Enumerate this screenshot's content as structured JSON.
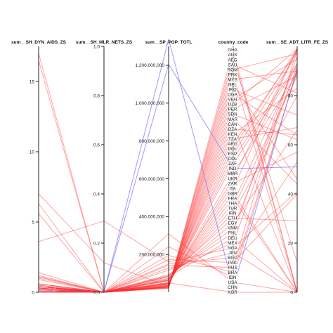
{
  "chart_data": {
    "type": "parallel-coordinates",
    "axes": [
      {
        "id": "aids",
        "title": "sum__SH_DYN_AIDS_ZS",
        "range": [
          0,
          17.5
        ],
        "ticks": [
          0,
          5,
          10,
          15
        ],
        "tick_labels": [
          "0",
          "5",
          "10",
          "15"
        ]
      },
      {
        "id": "nets",
        "title": "sum__SH_MLR_NETS_ZS",
        "range": [
          0,
          1.0
        ],
        "ticks": [
          0.0,
          0.2,
          0.4,
          0.6,
          0.8,
          1.0
        ],
        "tick_labels": [
          "0.0",
          "0.2",
          "0.4",
          "0.6",
          "0.8",
          "1.0"
        ]
      },
      {
        "id": "pop",
        "title": "sum__SP_POP_TOTL",
        "range": [
          0,
          1300000000
        ],
        "ticks": [
          200000000,
          400000000,
          600000000,
          800000000,
          1000000000,
          1200000000
        ],
        "tick_labels": [
          "200,000,000",
          "400,000,000",
          "600,000,000",
          "800,000,000",
          "1,000,000,000",
          "1,200,000,000"
        ]
      },
      {
        "id": "country",
        "title": "country_code",
        "categories": [
          "GHA",
          "AUS",
          "AFG",
          "SAU",
          "ROM",
          "PRK",
          "MYS",
          "NPL",
          "IRQ",
          "UGA",
          "VEN",
          "UZB",
          "PER",
          "SDN",
          "MAR",
          "CAN",
          "DZA",
          "KEN",
          "TZA",
          "ARG",
          "POL",
          "ESP",
          "COL",
          "ZAF",
          "IND",
          "MMR",
          "UKR",
          "ZAR",
          "ITA",
          "GBR",
          "FRA",
          "THA",
          "TUR",
          "IRN",
          "ETH",
          "EGY",
          "VNM",
          "PHL",
          "DEU",
          "MEX",
          "NGA",
          "JPN",
          "BGD",
          "PAK",
          "RUS",
          "BRA",
          "IDN",
          "USA",
          "CHN",
          "KOR"
        ]
      },
      {
        "id": "litr",
        "title": "sum__SE_ADT_LITR_FE_ZS",
        "range": [
          0,
          100
        ],
        "ticks": [
          0,
          20,
          40,
          60,
          80
        ],
        "tick_labels": [
          "0",
          "20",
          "40",
          "60",
          "80"
        ]
      }
    ],
    "colors": {
      "low": "#ff2a2a",
      "high": "#7b7bf0"
    },
    "records": [
      {
        "country": "GHA",
        "aids": 16.5,
        "nets": 0.0,
        "pop": 24000000,
        "litr": 0
      },
      {
        "country": "AUS",
        "aids": 0.1,
        "nets": 0.0,
        "pop": 22000000,
        "litr": 0
      },
      {
        "country": "AFG",
        "aids": 0.0,
        "nets": 0.0,
        "pop": 28000000,
        "litr": 12
      },
      {
        "country": "SAU",
        "aids": 0.0,
        "nets": 0.0,
        "pop": 27000000,
        "litr": 81
      },
      {
        "country": "ROM",
        "aids": 0.1,
        "nets": 0.0,
        "pop": 21000000,
        "litr": 97
      },
      {
        "country": "PRK",
        "aids": 0.0,
        "nets": 0.0,
        "pop": 24000000,
        "litr": 0
      },
      {
        "country": "MYS",
        "aids": 0.4,
        "nets": 0.0,
        "pop": 28000000,
        "litr": 90
      },
      {
        "country": "NPL",
        "aids": 0.3,
        "nets": 0.0,
        "pop": 29000000,
        "litr": 46
      },
      {
        "country": "IRQ",
        "aids": 0.0,
        "nets": 0.0,
        "pop": 30000000,
        "litr": 72
      },
      {
        "country": "UGA",
        "aids": 7.0,
        "nets": 0.12,
        "pop": 33000000,
        "litr": 64
      },
      {
        "country": "VEN",
        "aids": 0.6,
        "nets": 0.0,
        "pop": 29000000,
        "litr": 95
      },
      {
        "country": "UZB",
        "aids": 0.2,
        "nets": 0.0,
        "pop": 28000000,
        "litr": 99
      },
      {
        "country": "PER",
        "aids": 0.4,
        "nets": 0.0,
        "pop": 29000000,
        "litr": 88
      },
      {
        "country": "SDN",
        "aids": 1.1,
        "nets": 0.0,
        "pop": 34000000,
        "litr": 62
      },
      {
        "country": "MAR",
        "aids": 0.1,
        "nets": 0.0,
        "pop": 32000000,
        "litr": 44
      },
      {
        "country": "CAN",
        "aids": 0.2,
        "nets": 0.0,
        "pop": 34000000,
        "litr": 0
      },
      {
        "country": "DZA",
        "aids": 0.1,
        "nets": 0.0,
        "pop": 36000000,
        "litr": 64
      },
      {
        "country": "KEN",
        "aids": 6.3,
        "nets": 0.0,
        "pop": 41000000,
        "litr": 83
      },
      {
        "country": "TZA",
        "aids": 5.6,
        "nets": 0.0,
        "pop": 45000000,
        "litr": 67
      },
      {
        "country": "ARG",
        "aids": 0.4,
        "nets": 0.0,
        "pop": 40000000,
        "litr": 98
      },
      {
        "country": "POL",
        "aids": 0.1,
        "nets": 0.0,
        "pop": 38000000,
        "litr": 99
      },
      {
        "country": "ESP",
        "aids": 0.4,
        "nets": 0.0,
        "pop": 46000000,
        "litr": 97
      },
      {
        "country": "COL",
        "aids": 0.5,
        "nets": 0.0,
        "pop": 46000000,
        "litr": 93
      },
      {
        "country": "ZAF",
        "aids": 17.0,
        "nets": 0.0,
        "pop": 50000000,
        "litr": 92
      },
      {
        "country": "IND",
        "aids": 0.3,
        "nets": 0.0,
        "pop": 1205000000,
        "litr": 51
      },
      {
        "country": "MMR",
        "aids": 0.6,
        "nets": 0.0,
        "pop": 52000000,
        "litr": 89
      },
      {
        "country": "UKR",
        "aids": 0.9,
        "nets": 0.0,
        "pop": 46000000,
        "litr": 99
      },
      {
        "country": "ZAR",
        "aids": 1.1,
        "nets": 0.0,
        "pop": 62000000,
        "litr": 57
      },
      {
        "country": "ITA",
        "aids": 0.3,
        "nets": 0.0,
        "pop": 60000000,
        "litr": 99
      },
      {
        "country": "GBR",
        "aids": 0.3,
        "nets": 0.0,
        "pop": 63000000,
        "litr": 0
      },
      {
        "country": "FRA",
        "aids": 0.4,
        "nets": 0.0,
        "pop": 65000000,
        "litr": 0
      },
      {
        "country": "THA",
        "aids": 1.2,
        "nets": 0.0,
        "pop": 67000000,
        "litr": 93
      },
      {
        "country": "TUR",
        "aids": 0.1,
        "nets": 0.0,
        "pop": 72000000,
        "litr": 88
      },
      {
        "country": "IRN",
        "aids": 0.2,
        "nets": 0.0,
        "pop": 74000000,
        "litr": 80
      },
      {
        "country": "ETH",
        "aids": 1.4,
        "nets": 0.0,
        "pop": 87000000,
        "litr": 29
      },
      {
        "country": "EGY",
        "aids": 0.1,
        "nets": 0.0,
        "pop": 82000000,
        "litr": 66
      },
      {
        "country": "VNM",
        "aids": 0.4,
        "nets": 0.0,
        "pop": 88000000,
        "litr": 91
      },
      {
        "country": "PHL",
        "aids": 0.1,
        "nets": 0.0,
        "pop": 93000000,
        "litr": 96
      },
      {
        "country": "DEU",
        "aids": 0.2,
        "nets": 0.0,
        "pop": 82000000,
        "litr": 0
      },
      {
        "country": "MEX",
        "aids": 0.3,
        "nets": 0.0,
        "pop": 117000000,
        "litr": 92
      },
      {
        "country": "NGA",
        "aids": 3.6,
        "nets": 0.29,
        "pop": 160000000,
        "litr": 41
      },
      {
        "country": "JPN",
        "aids": 0.1,
        "nets": 0.0,
        "pop": 128000000,
        "litr": 0
      },
      {
        "country": "BGD",
        "aids": 0.1,
        "nets": 0.0,
        "pop": 150000000,
        "litr": 53
      },
      {
        "country": "PAK",
        "aids": 0.1,
        "nets": 0.0,
        "pop": 173000000,
        "litr": 40
      },
      {
        "country": "RUS",
        "aids": 1.0,
        "nets": 0.0,
        "pop": 143000000,
        "litr": 99
      },
      {
        "country": "BRA",
        "aids": 0.5,
        "nets": 0.0,
        "pop": 195000000,
        "litr": 90
      },
      {
        "country": "IDN",
        "aids": 0.4,
        "nets": 0.0,
        "pop": 240000000,
        "litr": 90
      },
      {
        "country": "USA",
        "aids": 0.6,
        "nets": 0.0,
        "pop": 309000000,
        "litr": 0
      },
      {
        "country": "CHN",
        "aids": 0.1,
        "nets": 0.0,
        "pop": 1338000000,
        "litr": 91
      },
      {
        "country": "KOR",
        "aids": 0.1,
        "nets": 0.0,
        "pop": 49000000,
        "litr": 0
      }
    ]
  }
}
